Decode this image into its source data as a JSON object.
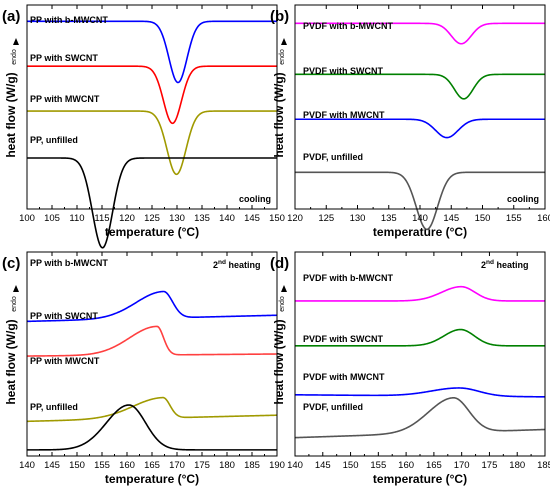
{
  "chart_data": [
    {
      "type": "line",
      "panel": "(a)",
      "xlabel": "temperature (°C)",
      "ylabel": "heat flow (W/g)",
      "endo_label": "endo",
      "annotation": "cooling",
      "superscript": "",
      "xlim": [
        100,
        150
      ],
      "xticks": [
        "100",
        "105",
        "110",
        "115",
        "120",
        "125",
        "130",
        "135",
        "140",
        "145",
        "150"
      ],
      "series": [
        {
          "name": "PP with b-MWCNT",
          "color": "#0000ff",
          "baseline": 0.92,
          "peaks": [
            {
              "x": 130.2,
              "amp": -0.3,
              "wl": 1.8,
              "wr": 1.8
            }
          ]
        },
        {
          "name": "PP with SWCNT",
          "color": "#ff0000",
          "baseline": 0.7,
          "peaks": [
            {
              "x": 129.1,
              "amp": -0.28,
              "wl": 1.8,
              "wr": 1.8
            }
          ]
        },
        {
          "name": "PP with MWCNT",
          "color": "#a09a00",
          "baseline": 0.48,
          "peaks": [
            {
              "x": 129.9,
              "amp": -0.31,
              "wl": 1.9,
              "wr": 1.9
            }
          ]
        },
        {
          "name": "PP, unfilled",
          "color": "#000000",
          "baseline": 0.25,
          "peaks": [
            {
              "x": 115.1,
              "amp": -0.44,
              "wl": 2.0,
              "wr": 2.0
            }
          ]
        }
      ]
    },
    {
      "type": "line",
      "panel": "(b)",
      "xlabel": "temperature (°C)",
      "ylabel": "heat flow (W/g)",
      "endo_label": "endo",
      "annotation": "cooling",
      "superscript": "",
      "xlim": [
        120,
        160
      ],
      "xticks": [
        "120",
        "125",
        "130",
        "135",
        "140",
        "145",
        "150",
        "155",
        "160"
      ],
      "series": [
        {
          "name": "PVDF with b-MWCNT",
          "color": "#ff00ff",
          "baseline": 0.91,
          "peaks": [
            {
              "x": 146.6,
              "amp": -0.1,
              "wl": 1.6,
              "wr": 1.6
            }
          ]
        },
        {
          "name": "PVDF with SWCNT",
          "color": "#008000",
          "baseline": 0.66,
          "peaks": [
            {
              "x": 147.0,
              "amp": -0.12,
              "wl": 1.5,
              "wr": 1.5
            }
          ]
        },
        {
          "name": "PVDF with MWCNT",
          "color": "#0000ff",
          "baseline": 0.44,
          "peaks": [
            {
              "x": 144.3,
              "amp": -0.09,
              "wl": 1.8,
              "wr": 1.8
            }
          ]
        },
        {
          "name": "PVDF, unfilled",
          "color": "#555555",
          "baseline": 0.18,
          "peaks": [
            {
              "x": 141.1,
              "amp": -0.28,
              "wl": 1.7,
              "wr": 1.7
            }
          ]
        }
      ]
    },
    {
      "type": "line",
      "panel": "(c)",
      "xlabel": "temperature (°C)",
      "ylabel": "heat flow (W/g)",
      "endo_label": "endo",
      "annotation": "2",
      "superscript": "nd",
      "annotation_rest": " heating",
      "xlim": [
        140,
        190
      ],
      "xticks": [
        "140",
        "145",
        "150",
        "155",
        "160",
        "165",
        "170",
        "175",
        "180",
        "185",
        "190"
      ],
      "series": [
        {
          "name": "PP with b-MWCNT",
          "color": "#0000ff",
          "start": 0.66,
          "end": 0.69,
          "peaks": [
            {
              "x": 167.3,
              "amp": 0.13,
              "wl": 5.5,
              "wr": 1.8
            }
          ]
        },
        {
          "name": "PP with SWCNT",
          "color": "#ff4040",
          "start": 0.49,
          "end": 0.5,
          "peaks": [
            {
              "x": 166.0,
              "amp": 0.14,
              "wl": 5.5,
              "wr": 1.3
            }
          ]
        },
        {
          "name": "PP with MWCNT",
          "color": "#a09a00",
          "start": 0.17,
          "end": 0.2,
          "peaks": [
            {
              "x": 167.2,
              "amp": 0.1,
              "wl": 6.0,
              "wr": 1.4
            }
          ]
        },
        {
          "name": "PP, unfilled",
          "color": "#000000",
          "start": 0.03,
          "end": 0.03,
          "peaks": [
            {
              "x": 160.4,
              "amp": 0.22,
              "wl": 4.5,
              "wr": 3.3
            }
          ]
        }
      ]
    },
    {
      "type": "line",
      "panel": "(d)",
      "xlabel": "temperature (°C)",
      "ylabel": "heat flow (W/g)",
      "endo_label": "endo",
      "annotation": "2",
      "superscript": "nd",
      "annotation_rest": " heating",
      "xlim": [
        140,
        185
      ],
      "xticks": [
        "140",
        "145",
        "150",
        "155",
        "160",
        "165",
        "170",
        "175",
        "180",
        "185"
      ],
      "series": [
        {
          "name": "PVDF with b-MWCNT",
          "color": "#ff00ff",
          "start": 0.76,
          "end": 0.76,
          "peaks": [
            {
              "x": 169.9,
              "amp": 0.07,
              "wl": 3.5,
              "wr": 2.5
            }
          ]
        },
        {
          "name": "PVDF with SWCNT",
          "color": "#008000",
          "start": 0.54,
          "end": 0.54,
          "peaks": [
            {
              "x": 169.8,
              "amp": 0.08,
              "wl": 3.0,
              "wr": 2.5
            }
          ]
        },
        {
          "name": "PVDF with MWCNT",
          "color": "#0000ff",
          "start": 0.3,
          "end": 0.29,
          "peaks": [
            {
              "x": 169.6,
              "amp": 0.04,
              "wl": 5.0,
              "wr": 3.5
            }
          ]
        },
        {
          "name": "PVDF, unfilled",
          "color": "#555555",
          "start": 0.09,
          "end": 0.13,
          "peaks": [
            {
              "x": 168.5,
              "amp": 0.17,
              "wl": 4.5,
              "wr": 2.8
            }
          ]
        }
      ]
    }
  ]
}
